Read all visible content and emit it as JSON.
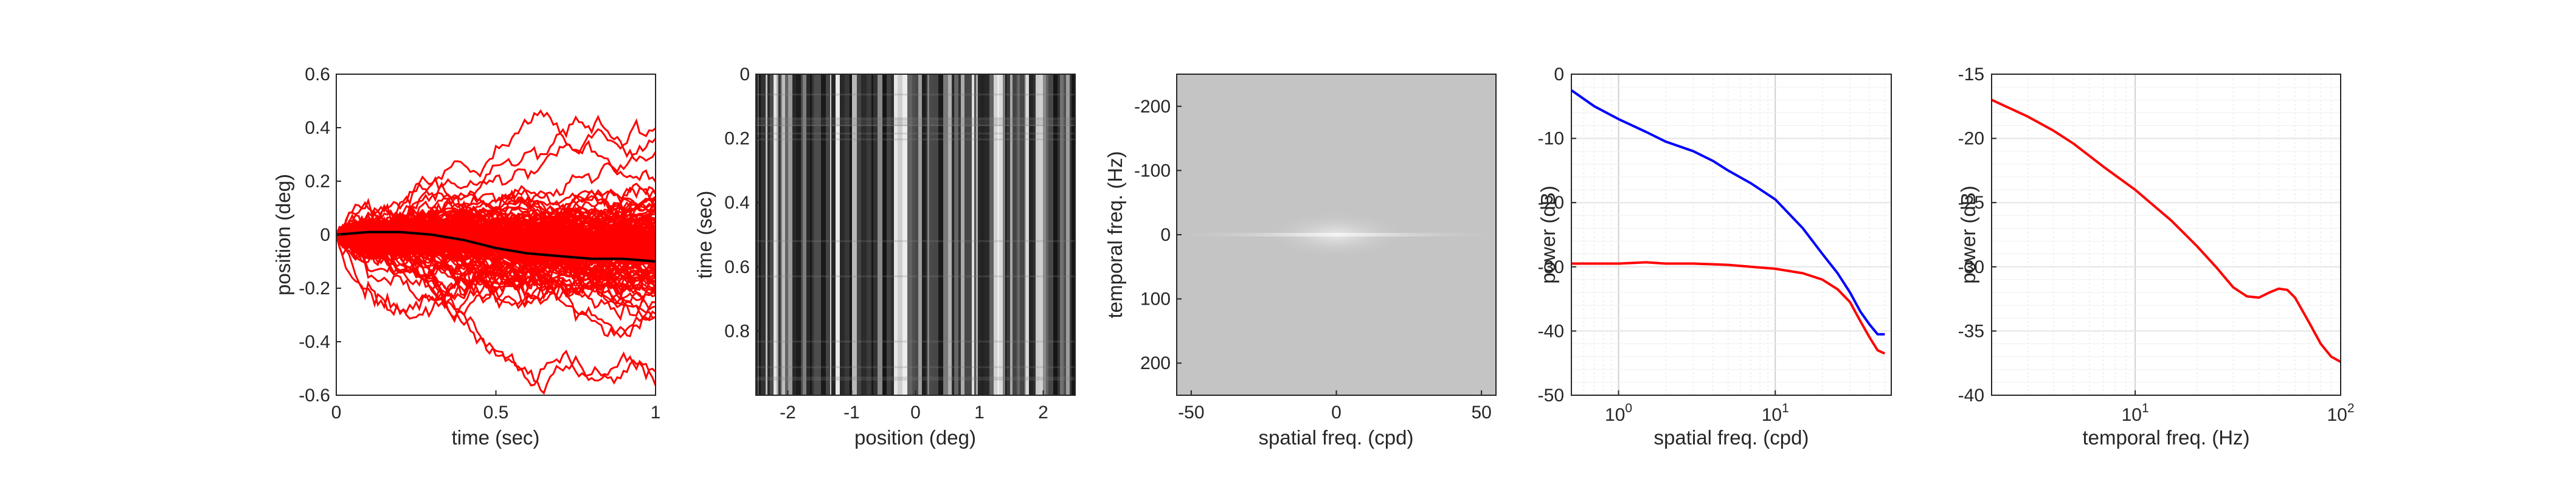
{
  "chart_data": [
    {
      "type": "line",
      "xlabel": "time (sec)",
      "ylabel": "position (deg)",
      "xlim": [
        0,
        1
      ],
      "ylim": [
        -0.6,
        0.6
      ],
      "xticks": [
        "0",
        "0.5",
        "1"
      ],
      "yticks": [
        "0.6",
        "0.4",
        "0.2",
        "0",
        "-0.2",
        "-0.4",
        "-0.6"
      ],
      "grid": false,
      "series": [
        {
          "color": "#ff0000",
          "kind": "random-walk trajectories (many traces)"
        },
        {
          "color": "#000000",
          "kind": "mean trajectory",
          "x": [
            0,
            0.1,
            0.2,
            0.3,
            0.4,
            0.5,
            0.6,
            0.7,
            0.8,
            0.9,
            1.0
          ],
          "y": [
            0,
            0.01,
            0.01,
            0.0,
            -0.02,
            -0.05,
            -0.07,
            -0.08,
            -0.09,
            -0.09,
            -0.1
          ]
        }
      ]
    },
    {
      "type": "heatmap",
      "xlabel": "position (deg)",
      "ylabel": "time (sec)",
      "xlim": [
        -2.5,
        2.5
      ],
      "ylim": [
        0,
        1
      ],
      "xticks": [
        "-2",
        "-1",
        "0",
        "1",
        "2"
      ],
      "yticks": [
        "0",
        "0.2",
        "0.4",
        "0.6",
        "0.8"
      ],
      "colormap": "gray"
    },
    {
      "type": "heatmap",
      "xlabel": "spatial freq. (cpd)",
      "ylabel": "temporal freq. (Hz)",
      "xlim": [
        -55,
        55
      ],
      "ylim": [
        -250,
        250
      ],
      "xticks": [
        "-50",
        "0",
        "50"
      ],
      "yticks": [
        "-200",
        "-100",
        "0",
        "100",
        "200"
      ],
      "colormap": "gray"
    },
    {
      "type": "line",
      "xlabel": "spatial freq. (cpd)",
      "ylabel": "power (dB)",
      "xscale": "log",
      "xlim": [
        0.5,
        55
      ],
      "ylim": [
        -50,
        0
      ],
      "xticks": [
        "10^0",
        "10^1"
      ],
      "yticks": [
        "0",
        "-10",
        "-20",
        "-30",
        "-40",
        "-50"
      ],
      "grid": true,
      "series": [
        {
          "color": "#0000ff",
          "x": [
            0.5,
            0.7,
            1,
            1.5,
            2,
            3,
            4,
            5,
            7,
            10,
            15,
            20,
            25,
            30,
            35,
            40,
            45,
            50
          ],
          "y": [
            -2.5,
            -5,
            -7,
            -9,
            -10.5,
            -12,
            -13.5,
            -15,
            -17,
            -19.5,
            -24,
            -28,
            -31,
            -34,
            -37,
            -39,
            -40.5,
            -40.5
          ]
        },
        {
          "color": "#ff0000",
          "x": [
            0.5,
            0.7,
            1,
            1.5,
            2,
            3,
            4,
            5,
            7,
            10,
            15,
            20,
            25,
            30,
            35,
            40,
            45,
            50
          ],
          "y": [
            -29.5,
            -29.5,
            -29.5,
            -29.3,
            -29.5,
            -29.5,
            -29.6,
            -29.7,
            -30,
            -30.3,
            -31,
            -32,
            -33.5,
            -35.5,
            -38.5,
            -41,
            -43,
            -43.5
          ]
        }
      ]
    },
    {
      "type": "line",
      "xlabel": "temporal freq. (Hz)",
      "ylabel": "power (dB)",
      "xscale": "log",
      "xlim": [
        2,
        100
      ],
      "ylim": [
        -40,
        -15
      ],
      "xticks": [
        "10^1",
        "10^2"
      ],
      "yticks": [
        "-15",
        "-20",
        "-25",
        "-30",
        "-35",
        "-40"
      ],
      "grid": true,
      "series": [
        {
          "color": "#ff0000",
          "x": [
            2,
            3,
            4,
            5,
            7,
            10,
            15,
            20,
            25,
            30,
            35,
            40,
            45,
            50,
            55,
            60,
            70,
            80,
            90,
            100
          ],
          "y": [
            -17,
            -18.3,
            -19.4,
            -20.4,
            -22.2,
            -24,
            -26.4,
            -28.4,
            -30.1,
            -31.6,
            -32.3,
            -32.4,
            -32,
            -31.7,
            -31.8,
            -32.4,
            -34.3,
            -36,
            -37,
            -37.4
          ]
        }
      ]
    }
  ]
}
